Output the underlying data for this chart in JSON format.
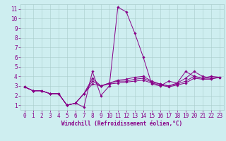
{
  "xlabel": "Windchill (Refroidissement éolien,°C)",
  "ylabel": "",
  "xlim": [
    -0.5,
    23.5
  ],
  "ylim": [
    0.5,
    11.5
  ],
  "xticks": [
    0,
    1,
    2,
    3,
    4,
    5,
    6,
    7,
    8,
    9,
    10,
    11,
    12,
    13,
    14,
    15,
    16,
    17,
    18,
    19,
    20,
    21,
    22,
    23
  ],
  "yticks": [
    1,
    2,
    3,
    4,
    5,
    6,
    7,
    8,
    9,
    10,
    11
  ],
  "background_color": "#ceeef0",
  "line_color": "#880088",
  "grid_color": "#aacccc",
  "lines": [
    [
      2.9,
      2.5,
      2.5,
      2.2,
      2.2,
      1.0,
      1.2,
      0.8,
      4.5,
      2.0,
      3.0,
      11.2,
      10.7,
      8.5,
      6.0,
      3.2,
      3.0,
      3.5,
      3.3,
      4.5,
      4.0,
      3.8,
      4.0,
      3.9
    ],
    [
      2.9,
      2.5,
      2.5,
      2.2,
      2.2,
      1.0,
      1.2,
      2.2,
      3.8,
      3.0,
      3.3,
      3.6,
      3.7,
      3.9,
      4.0,
      3.5,
      3.2,
      3.0,
      3.3,
      3.8,
      4.5,
      4.0,
      3.8,
      3.9
    ],
    [
      2.9,
      2.5,
      2.5,
      2.2,
      2.2,
      1.0,
      1.2,
      2.2,
      3.5,
      3.0,
      3.3,
      3.5,
      3.5,
      3.7,
      3.8,
      3.4,
      3.2,
      3.0,
      3.2,
      3.5,
      4.0,
      3.8,
      3.8,
      3.9
    ],
    [
      2.9,
      2.5,
      2.5,
      2.2,
      2.2,
      1.0,
      1.2,
      2.2,
      3.2,
      3.0,
      3.2,
      3.3,
      3.4,
      3.5,
      3.6,
      3.3,
      3.1,
      2.9,
      3.1,
      3.3,
      3.8,
      3.7,
      3.7,
      3.9
    ]
  ],
  "tick_fontsize": 5.5,
  "xlabel_fontsize": 5.5
}
